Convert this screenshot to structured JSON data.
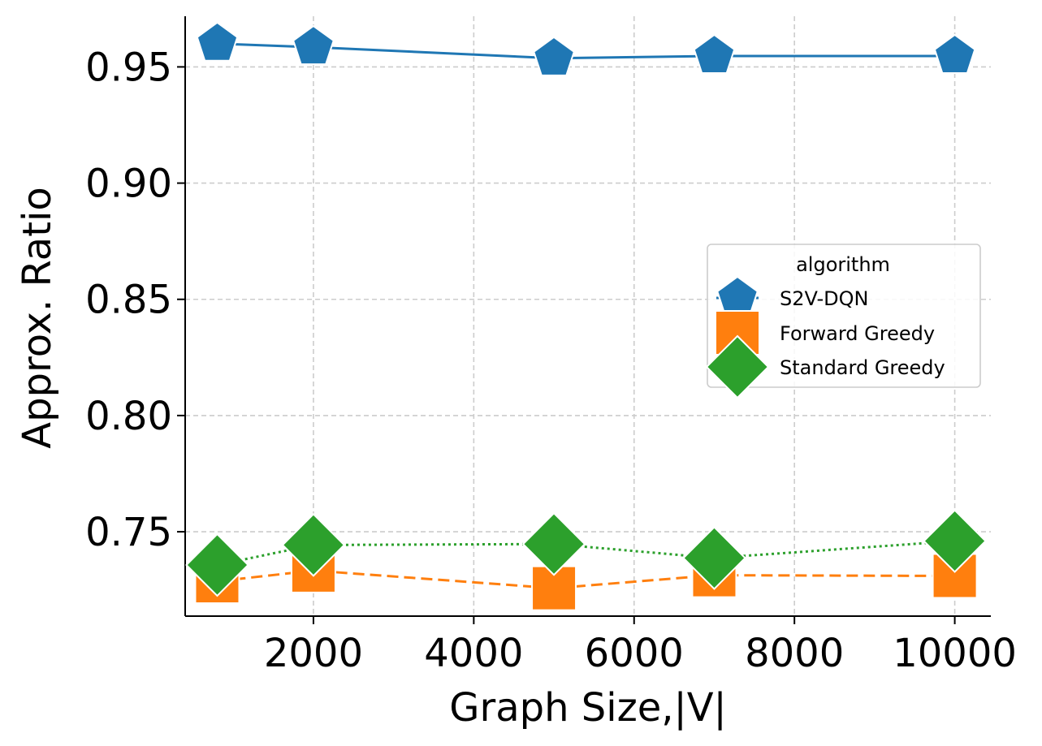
{
  "chart_data": {
    "type": "line",
    "title": "",
    "xlabel": "Graph Size,|V|",
    "ylabel": "Approx. Ratio",
    "xlim": [
      400,
      10450
    ],
    "ylim": [
      0.7137,
      0.9718
    ],
    "x_ticks": [
      2000,
      4000,
      6000,
      8000,
      10000
    ],
    "x_tick_labels": [
      "2000",
      "4000",
      "6000",
      "8000",
      "10000"
    ],
    "y_ticks": [
      0.75,
      0.8,
      0.85,
      0.9,
      0.95
    ],
    "y_tick_labels": [
      "0.75",
      "0.80",
      "0.85",
      "0.90",
      "0.95"
    ],
    "grid": true,
    "legend": {
      "title": "algorithm",
      "placement": "center-right"
    },
    "x": [
      800,
      2000,
      5000,
      7000,
      10000
    ],
    "series": [
      {
        "name": "S2V-DQN",
        "values": [
          0.96,
          0.9585,
          0.9537,
          0.9547,
          0.9547
        ],
        "color": "#1f77b4",
        "marker": "pentagon",
        "line_style": "solid"
      },
      {
        "name": "Forward Greedy",
        "values": [
          0.7287,
          0.7333,
          0.7257,
          0.7313,
          0.731
        ],
        "color": "#ff7f0e",
        "marker": "square",
        "line_style": "dashed"
      },
      {
        "name": "Standard Greedy",
        "values": [
          0.7357,
          0.7443,
          0.7447,
          0.7387,
          0.746
        ],
        "color": "#2ca02c",
        "marker": "diamond",
        "line_style": "dotted"
      }
    ]
  }
}
